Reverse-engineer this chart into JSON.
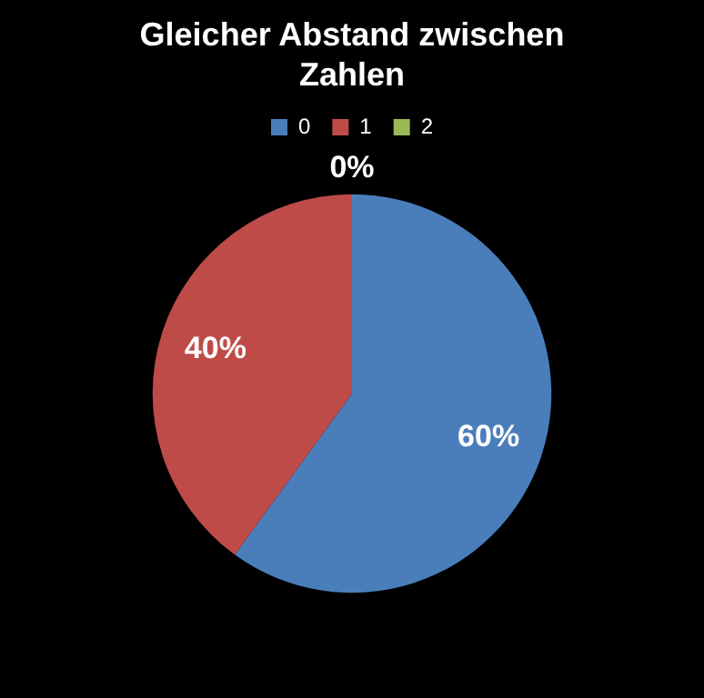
{
  "chart_data": {
    "type": "pie",
    "title": "Gleicher Abstand zwischen Zahlen",
    "categories": [
      "0",
      "1",
      "2"
    ],
    "values": [
      60,
      40,
      0
    ],
    "colors": [
      "#4a7ebb",
      "#be4b48",
      "#98b954"
    ],
    "value_labels": [
      "60%",
      "40%",
      "0%"
    ],
    "legend": "top"
  }
}
